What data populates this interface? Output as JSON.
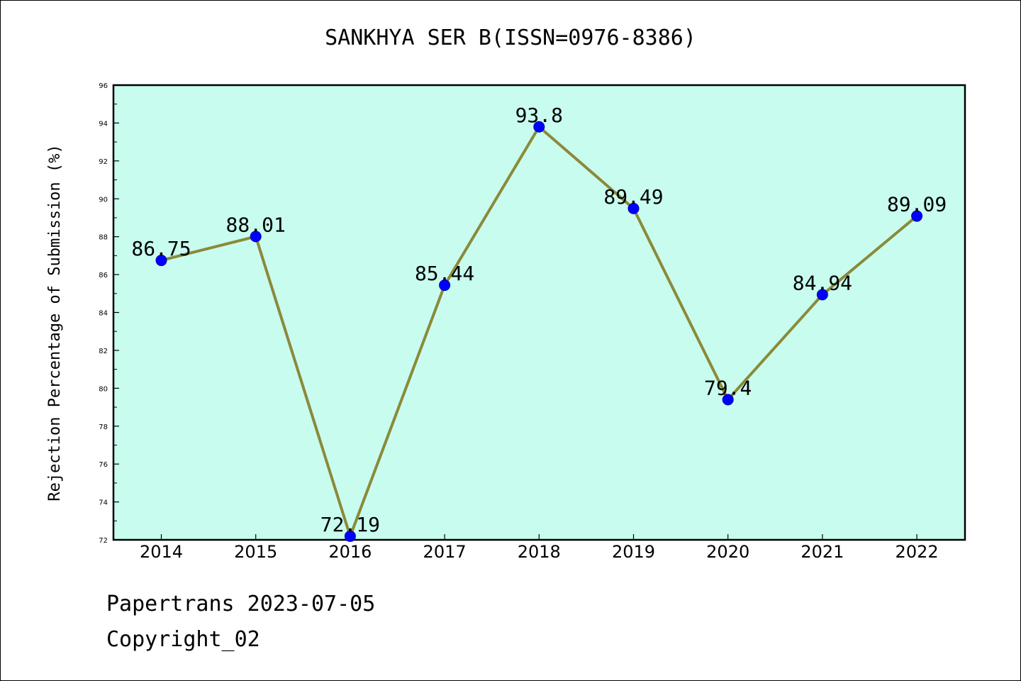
{
  "chart_data": {
    "type": "line",
    "title": "SANKHYA SER B(ISSN=0976-8386)",
    "ylabel": "Rejection Percentage of Submission (%)",
    "xlabel": "",
    "categories": [
      "2014",
      "2015",
      "2016",
      "2017",
      "2018",
      "2019",
      "2020",
      "2021",
      "2022"
    ],
    "values": [
      86.75,
      88.01,
      72.19,
      85.44,
      93.8,
      89.49,
      79.4,
      84.94,
      89.09
    ],
    "data_labels": [
      "86.75",
      "88.01",
      "72.19",
      "85.44",
      "93.8",
      "89.49",
      "79.4",
      "84.94",
      "89.09"
    ],
    "ylim": [
      72,
      96
    ],
    "yticks": [
      72,
      74,
      76,
      78,
      80,
      82,
      84,
      86,
      88,
      90,
      92,
      94,
      96
    ],
    "grid": false,
    "legend": "none",
    "colors": {
      "plot_background": "#c8fcee",
      "line": "#8b8a3a",
      "marker": "#0000ff"
    }
  },
  "footer": {
    "line1": "Papertrans 2023-07-05",
    "line2": "Copyright_02"
  }
}
